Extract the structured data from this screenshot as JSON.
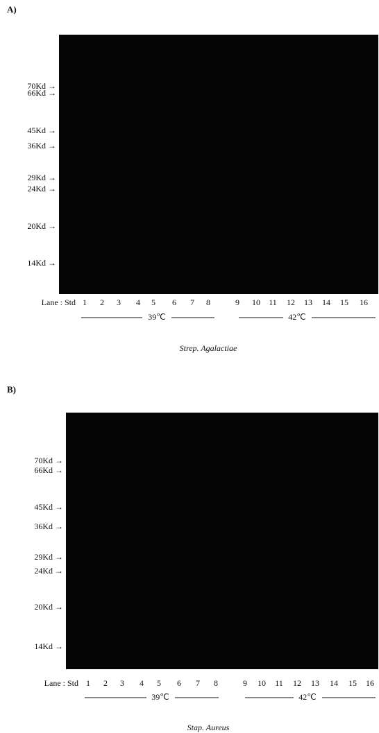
{
  "panels": [
    {
      "label": "A)",
      "markers": [
        "70Kd →",
        "66Kd →",
        "45Kd →",
        "36Kd →",
        "29Kd →",
        "24Kd →",
        "20Kd →",
        "14Kd →"
      ],
      "lane_prefix": "Lane : Std",
      "lanes": [
        "1",
        "2",
        "3",
        "4",
        "5",
        "6",
        "7",
        "8",
        "9",
        "10",
        "11",
        "12",
        "13",
        "14",
        "15",
        "16"
      ],
      "groups": [
        "39℃",
        "42℃"
      ],
      "caption": "Strep. Agalactiae"
    },
    {
      "label": "B)",
      "markers": [
        "70Kd →",
        "66Kd →",
        "45Kd →",
        "36Kd →",
        "29Kd →",
        "24Kd →",
        "20Kd →",
        "14Kd →"
      ],
      "lane_prefix": "Lane : Std",
      "lanes": [
        "1",
        "2",
        "3",
        "4",
        "5",
        "6",
        "7",
        "8",
        "9",
        "10",
        "11",
        "12",
        "13",
        "14",
        "15",
        "16"
      ],
      "groups": [
        "39℃",
        "42℃"
      ],
      "caption": "Stap. Aureus"
    }
  ]
}
